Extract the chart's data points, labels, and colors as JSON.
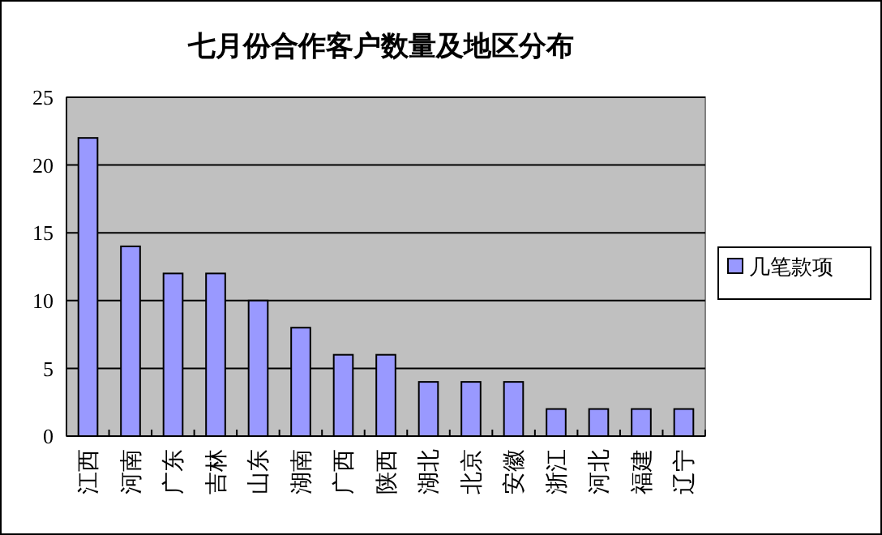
{
  "chart_data": {
    "type": "bar",
    "title": "七月份合作客户数量及地区分布",
    "categories": [
      "江西",
      "河南",
      "广东",
      "吉林",
      "山东",
      "湖南",
      "广西",
      "陕西",
      "湖北",
      "北京",
      "安徽",
      "浙江",
      "河北",
      "福建",
      "辽宁"
    ],
    "series": [
      {
        "name": "几笔款项",
        "color": "#9999ff",
        "values": [
          22,
          14,
          12,
          12,
          10,
          8,
          6,
          6,
          4,
          4,
          4,
          2,
          2,
          2,
          2
        ]
      }
    ],
    "ylim": [
      0,
      25
    ],
    "yticks": [
      0,
      5,
      10,
      15,
      20,
      25
    ],
    "grid": "y",
    "legend": "right"
  }
}
